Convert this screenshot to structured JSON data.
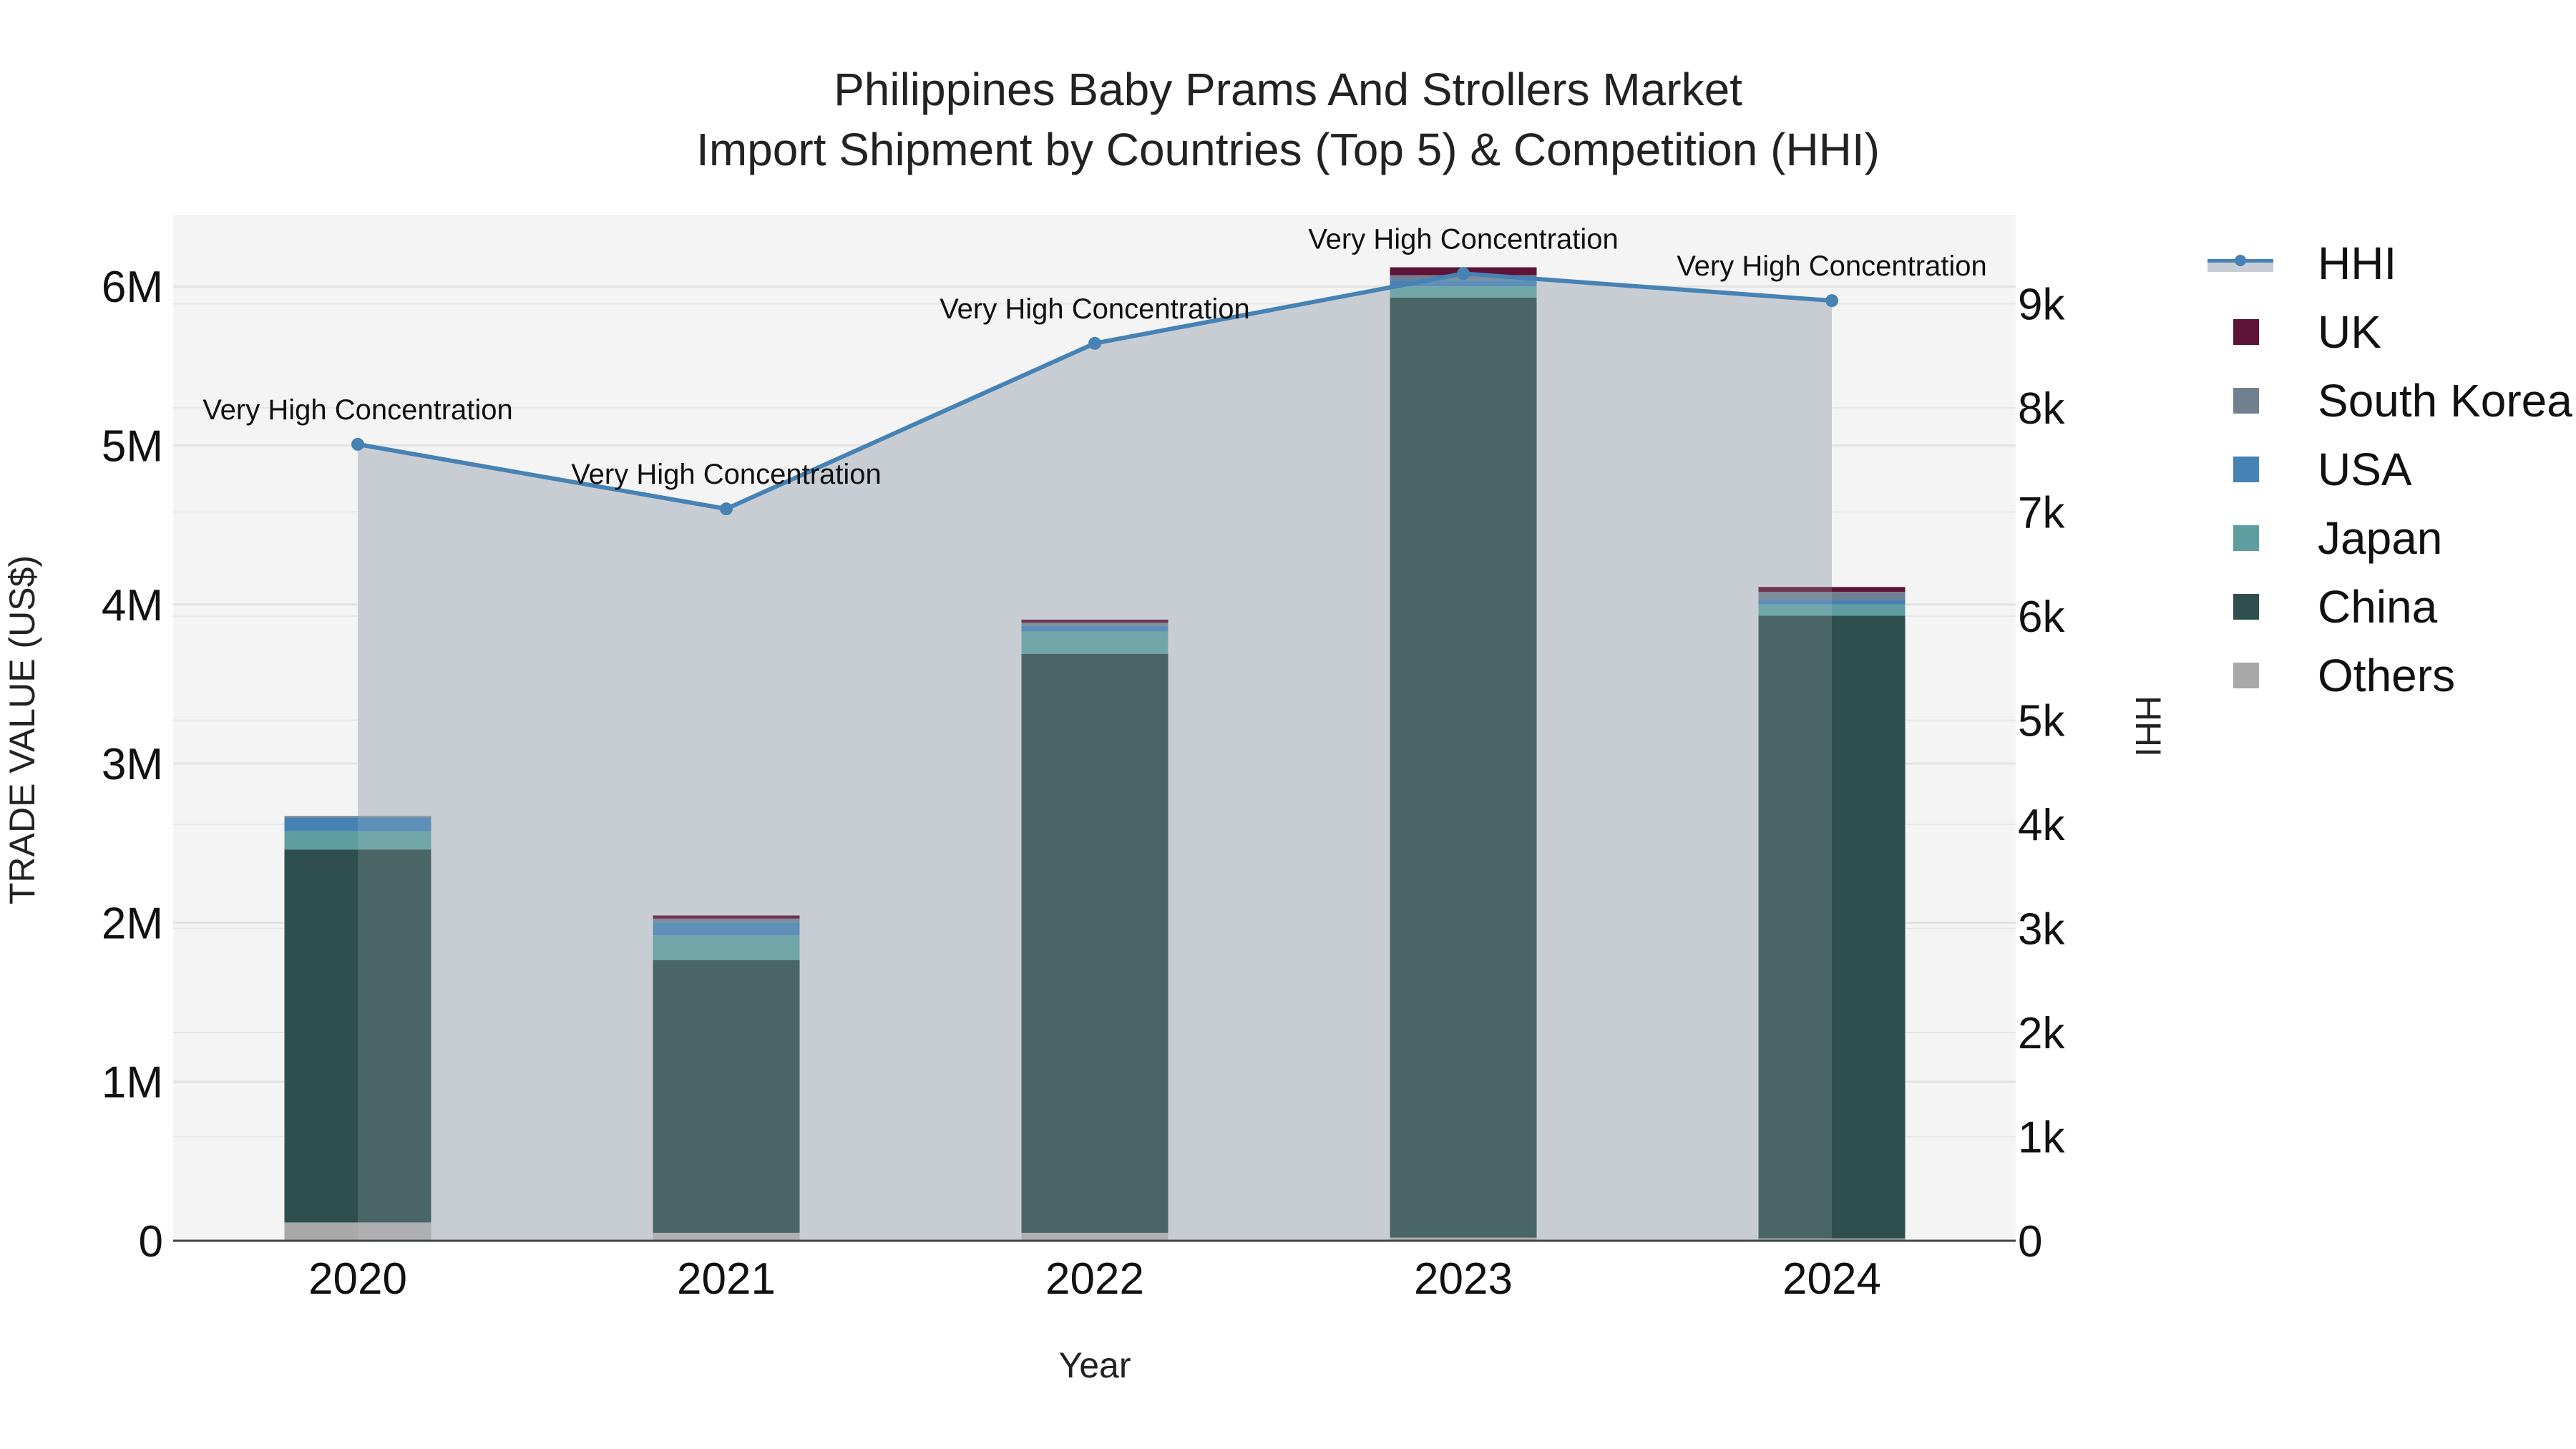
{
  "title": {
    "line1": "Philippines Baby Prams And Strollers Market",
    "line2": "Import Shipment by Countries (Top 5) & Competition (HHI)"
  },
  "axes": {
    "x_title": "Year",
    "y_left_title": "TRADE VALUE (US$)",
    "y_right_title": "HHI",
    "y_left_ticks": [
      "0",
      "1M",
      "2M",
      "3M",
      "4M",
      "5M",
      "6M"
    ],
    "y_right_ticks": [
      "0",
      "1k",
      "2k",
      "3k",
      "4k",
      "5k",
      "6k",
      "7k",
      "8k",
      "9k"
    ],
    "x_ticks": [
      "2020",
      "2021",
      "2022",
      "2023",
      "2024"
    ]
  },
  "legend": [
    {
      "name": "HHI",
      "color": "#4682b4",
      "type": "line"
    },
    {
      "name": "UK",
      "color": "#5e1437",
      "type": "box"
    },
    {
      "name": "South Korea",
      "color": "#708090",
      "type": "box"
    },
    {
      "name": "USA",
      "color": "#4682b4",
      "type": "box"
    },
    {
      "name": "Japan",
      "color": "#5f9ea0",
      "type": "box"
    },
    {
      "name": "China",
      "color": "#2f4f4f",
      "type": "box"
    },
    {
      "name": "Others",
      "color": "#a9a9a9",
      "type": "box"
    }
  ],
  "annotation_label": "Very High Concentration",
  "colors": {
    "plot_bg": "#f4f4f4",
    "hhi_area": "#c8cdd5",
    "hhi_line": "#4682b4",
    "grid": "#e2e2e2"
  },
  "chart_data": {
    "type": "bar",
    "title": "Philippines Baby Prams And Strollers Market — Import Shipment by Countries (Top 5) & Competition (HHI)",
    "xlabel": "Year",
    "ylabel": "TRADE VALUE (US$)",
    "y2label": "HHI",
    "categories": [
      "2020",
      "2021",
      "2022",
      "2023",
      "2024"
    ],
    "stacked": true,
    "ylim": [
      0,
      6400000
    ],
    "y2lim": [
      0,
      9900
    ],
    "series": [
      {
        "name": "Others",
        "color": "#a9a9a9",
        "values": [
          115000,
          50000,
          50000,
          20000,
          15000
        ]
      },
      {
        "name": "China",
        "color": "#2f4f4f",
        "values": [
          2345000,
          1715000,
          3640000,
          5910000,
          3915000
        ]
      },
      {
        "name": "Japan",
        "color": "#5f9ea0",
        "values": [
          115000,
          155000,
          140000,
          70000,
          70000
        ]
      },
      {
        "name": "USA",
        "color": "#4682b4",
        "values": [
          85000,
          80000,
          35000,
          40000,
          30000
        ]
      },
      {
        "name": "South Korea",
        "color": "#708090",
        "values": [
          10000,
          25000,
          20000,
          30000,
          50000
        ]
      },
      {
        "name": "UK",
        "color": "#5e1437",
        "values": [
          0,
          20000,
          20000,
          50000,
          30000
        ]
      }
    ],
    "hhi": {
      "name": "HHI",
      "axis": "right",
      "type": "line+area",
      "values": [
        7650,
        7030,
        8620,
        9290,
        9030
      ],
      "labels": [
        "Very High Concentration",
        "Very High Concentration",
        "Very High Concentration",
        "Very High Concentration",
        "Very High Concentration"
      ]
    },
    "legend_position": "right",
    "grid": true
  }
}
